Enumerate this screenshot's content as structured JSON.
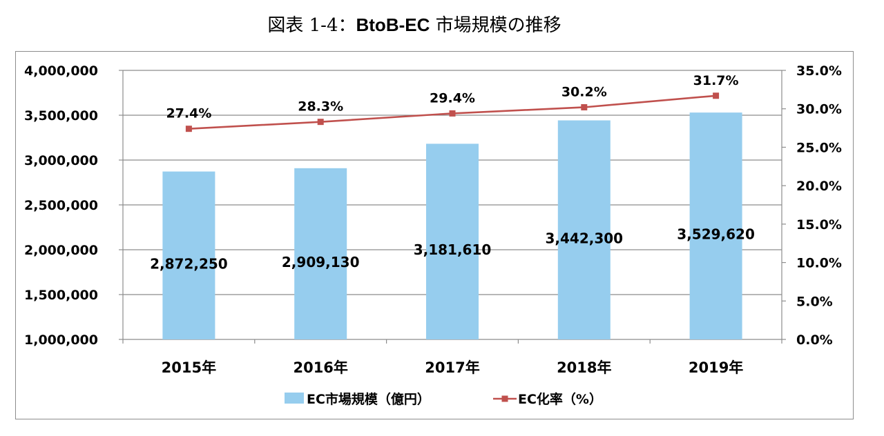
{
  "title": {
    "prefix": "図表 1-4：",
    "bold": "BtoB-EC",
    "suffix": " 市場規模の推移"
  },
  "chart_data": {
    "type": "bar",
    "categories": [
      "2015年",
      "2016年",
      "2017年",
      "2018年",
      "2019年"
    ],
    "series": [
      {
        "name": "EC市場規模（億円）",
        "type": "bar",
        "axis": "left",
        "values": [
          2872250,
          2909130,
          3181610,
          3442300,
          3529620
        ],
        "labels": [
          "2,872,250",
          "2,909,130",
          "3,181,610",
          "3,442,300",
          "3,529,620"
        ]
      },
      {
        "name": "EC化率（%）",
        "type": "line",
        "axis": "right",
        "values": [
          27.4,
          28.3,
          29.4,
          30.2,
          31.7
        ],
        "labels": [
          "27.4%",
          "28.3%",
          "29.4%",
          "30.2%",
          "31.7%"
        ]
      }
    ],
    "y_left": {
      "min": 1000000,
      "max": 4000000,
      "ticks": [
        "1,000,000",
        "1,500,000",
        "2,000,000",
        "2,500,000",
        "3,000,000",
        "3,500,000",
        "4,000,000"
      ]
    },
    "y_right": {
      "min": 0,
      "max": 35,
      "ticks": [
        "0.0%",
        "5.0%",
        "10.0%",
        "15.0%",
        "20.0%",
        "25.0%",
        "30.0%",
        "35.0%"
      ]
    },
    "grid": true,
    "legend_position": "bottom",
    "colors": {
      "bar": "#96cdee",
      "line": "#c0504d",
      "grid": "#8c8c8c"
    }
  }
}
